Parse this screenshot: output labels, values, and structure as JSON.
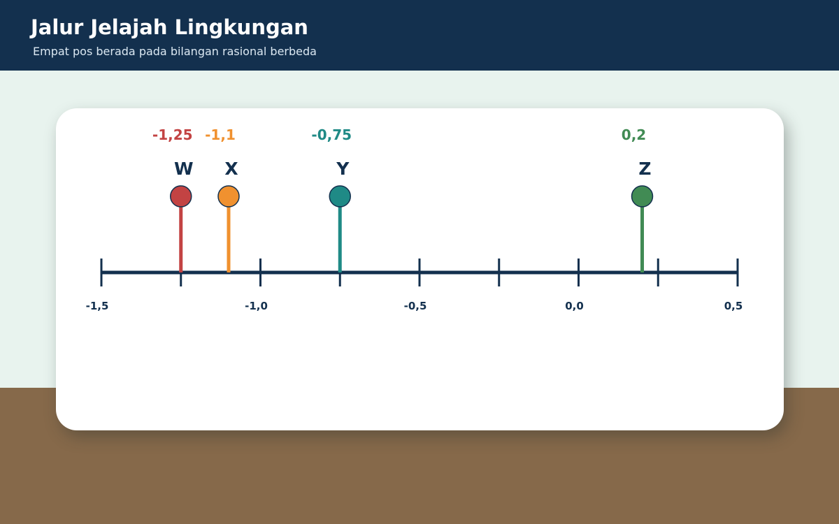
{
  "header": {
    "title": "Jalur Jelajah Lingkungan",
    "subtitle": "Empat pos berada pada bilangan rasional berbeda"
  },
  "colors": {
    "header_bg": "#13304e",
    "axis": "#13304e",
    "ground": "#86694a",
    "background": "#e8f3ee"
  },
  "number_line": {
    "min": -1.5,
    "max": 0.5,
    "minor_step": 0.25,
    "labeled_ticks": [
      {
        "value": -1.5,
        "label": "-1,5"
      },
      {
        "value": -1.0,
        "label": "-1,0"
      },
      {
        "value": -0.5,
        "label": "-0,5"
      },
      {
        "value": 0.0,
        "label": "0,0"
      },
      {
        "value": 0.5,
        "label": "0,5"
      }
    ],
    "points": [
      {
        "name": "W",
        "value": -1.25,
        "value_label": "-1,25",
        "color": "#c34343"
      },
      {
        "name": "X",
        "value": -1.1,
        "value_label": "-1,1",
        "color": "#f0912f"
      },
      {
        "name": "Y",
        "value": -0.75,
        "value_label": "-0,75",
        "color": "#1f8a86"
      },
      {
        "name": "Z",
        "value": 0.2,
        "value_label": "0,2",
        "color": "#418b54"
      }
    ]
  }
}
